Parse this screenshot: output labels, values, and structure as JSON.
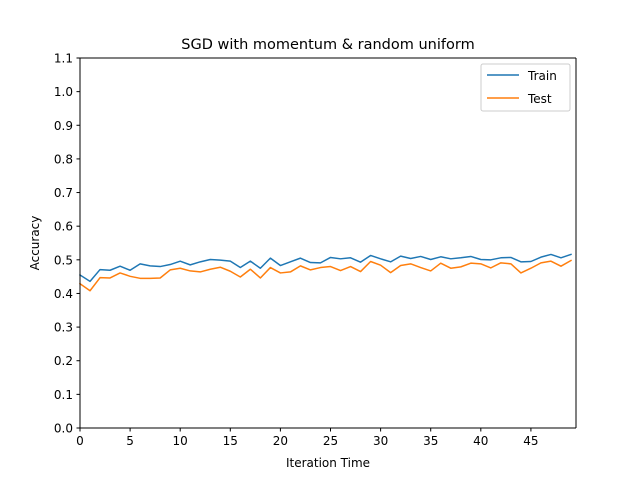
{
  "chart_data": {
    "type": "line",
    "title": "SGD with momentum & random uniform",
    "xlabel": "Iteration Time",
    "ylabel": "Accuracy",
    "xlim": [
      0,
      49.5
    ],
    "ylim": [
      0.0,
      1.1
    ],
    "xticks": [
      0,
      5,
      10,
      15,
      20,
      25,
      30,
      35,
      40,
      45
    ],
    "yticks": [
      0.0,
      0.1,
      0.2,
      0.3,
      0.4,
      0.5,
      0.6,
      0.7,
      0.8,
      0.9,
      1.0,
      1.1
    ],
    "grid": false,
    "legend_position": "top-right",
    "x": [
      0,
      1,
      2,
      3,
      4,
      5,
      6,
      7,
      8,
      9,
      10,
      11,
      12,
      13,
      14,
      15,
      16,
      17,
      18,
      19,
      20,
      21,
      22,
      23,
      24,
      25,
      26,
      27,
      28,
      29,
      30,
      31,
      32,
      33,
      34,
      35,
      36,
      37,
      38,
      39,
      40,
      41,
      42,
      43,
      44,
      45,
      46,
      47,
      48,
      49
    ],
    "series": [
      {
        "name": "Train",
        "color": "#1f77b4",
        "values": [
          0.455,
          0.436,
          0.471,
          0.469,
          0.481,
          0.469,
          0.488,
          0.482,
          0.48,
          0.486,
          0.496,
          0.485,
          0.494,
          0.501,
          0.499,
          0.496,
          0.477,
          0.496,
          0.475,
          0.505,
          0.483,
          0.494,
          0.505,
          0.492,
          0.491,
          0.507,
          0.503,
          0.506,
          0.493,
          0.513,
          0.503,
          0.494,
          0.511,
          0.504,
          0.51,
          0.501,
          0.509,
          0.503,
          0.506,
          0.51,
          0.501,
          0.5,
          0.506,
          0.507,
          0.494,
          0.495,
          0.508,
          0.516,
          0.506,
          0.516
        ]
      },
      {
        "name": "Test",
        "color": "#ff7f0e",
        "values": [
          0.429,
          0.408,
          0.447,
          0.446,
          0.461,
          0.451,
          0.445,
          0.445,
          0.446,
          0.47,
          0.475,
          0.467,
          0.464,
          0.472,
          0.478,
          0.466,
          0.449,
          0.472,
          0.446,
          0.477,
          0.461,
          0.464,
          0.482,
          0.47,
          0.477,
          0.48,
          0.468,
          0.48,
          0.465,
          0.495,
          0.484,
          0.462,
          0.483,
          0.488,
          0.477,
          0.467,
          0.49,
          0.475,
          0.479,
          0.49,
          0.488,
          0.476,
          0.491,
          0.488,
          0.461,
          0.475,
          0.491,
          0.496,
          0.481,
          0.498
        ]
      }
    ]
  }
}
